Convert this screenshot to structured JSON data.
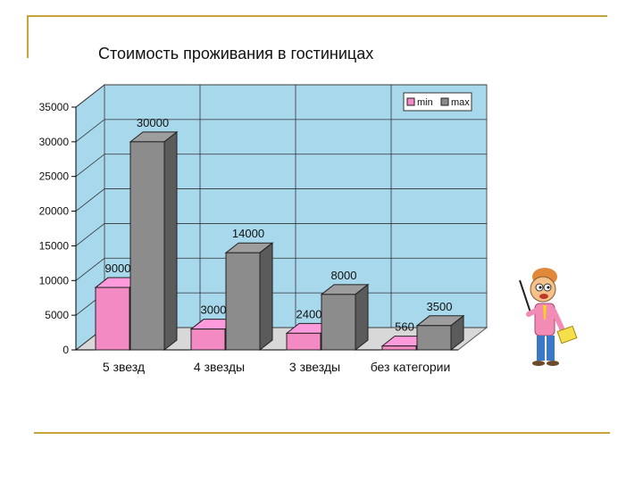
{
  "chart_data": {
    "type": "bar",
    "title": "Стоимость проживания в гостиницах",
    "categories": [
      "5 звезд",
      "4 звезды",
      "3 звезды",
      "без категории"
    ],
    "series": [
      {
        "name": "min",
        "values": [
          9000,
          3000,
          2400,
          560
        ],
        "color": "#f48ac4"
      },
      {
        "name": "max",
        "values": [
          30000,
          14000,
          8000,
          3500
        ],
        "color": "#8c8c8c"
      }
    ],
    "data_labels": [
      "9000",
      "3000",
      "2400",
      "560",
      "30000",
      "14000",
      "8000",
      "3500"
    ],
    "y_ticks": [
      "0",
      "5000",
      "10000",
      "15000",
      "20000",
      "25000",
      "30000",
      "35000"
    ],
    "ylim": [
      0,
      35000
    ],
    "xlabel": "",
    "ylabel": "",
    "grid": true,
    "legend_position": "top-right",
    "wall_color": "#a8d8ec",
    "accent_line_color": "#c8a23a"
  },
  "decoration": {
    "icon": "teacher-with-pointer-icon"
  }
}
